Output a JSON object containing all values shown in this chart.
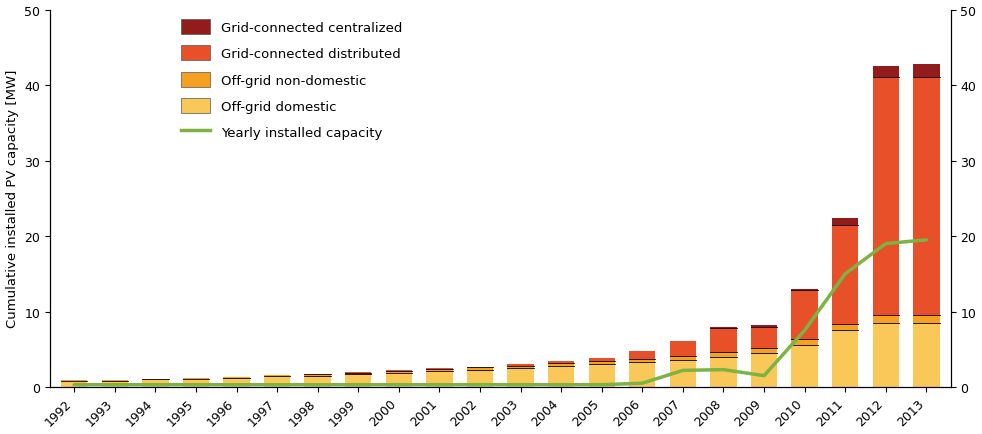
{
  "years": [
    1992,
    1993,
    1994,
    1995,
    1996,
    1997,
    1998,
    1999,
    2000,
    2001,
    2002,
    2003,
    2004,
    2005,
    2006,
    2007,
    2008,
    2009,
    2010,
    2011,
    2012,
    2013
  ],
  "off_grid_domestic": [
    0.8,
    0.8,
    1.0,
    1.0,
    1.2,
    1.4,
    1.5,
    1.7,
    1.9,
    2.1,
    2.3,
    2.5,
    2.8,
    3.0,
    3.3,
    3.6,
    4.0,
    4.5,
    5.5,
    7.5,
    8.5,
    8.5
  ],
  "off_grid_nondomestic": [
    0.1,
    0.1,
    0.1,
    0.15,
    0.15,
    0.2,
    0.2,
    0.2,
    0.25,
    0.25,
    0.3,
    0.3,
    0.35,
    0.4,
    0.45,
    0.5,
    0.6,
    0.7,
    0.8,
    0.9,
    1.0,
    1.0
  ],
  "grid_connected_dist": [
    0.0,
    0.0,
    0.0,
    0.0,
    0.0,
    0.0,
    0.05,
    0.05,
    0.1,
    0.1,
    0.1,
    0.2,
    0.3,
    0.4,
    1.0,
    2.0,
    3.2,
    2.8,
    6.5,
    13.0,
    31.5,
    31.5
  ],
  "grid_connected_cent": [
    0.0,
    0.0,
    0.0,
    0.0,
    0.0,
    0.0,
    0.0,
    0.0,
    0.0,
    0.0,
    0.0,
    0.0,
    0.0,
    0.0,
    0.0,
    0.0,
    0.1,
    0.15,
    0.2,
    1.0,
    1.5,
    1.8
  ],
  "yearly_capacity": [
    0.3,
    0.3,
    0.3,
    0.3,
    0.3,
    0.3,
    0.3,
    0.3,
    0.3,
    0.3,
    0.3,
    0.3,
    0.3,
    0.3,
    0.5,
    2.2,
    2.3,
    1.5,
    7.5,
    15.0,
    19.0,
    19.5
  ],
  "color_off_grid_domestic": "#FAC858",
  "color_off_grid_nondomestic": "#F5A020",
  "color_grid_dist": "#E8502A",
  "color_grid_cent": "#921B1B",
  "color_yearly": "#7CB342",
  "ylabel_left": "Cumulative installed PV capacity [MW]",
  "ylim": [
    0,
    50
  ],
  "yticks": [
    0,
    10,
    20,
    30,
    40,
    50
  ],
  "legend_labels": [
    "Grid-connected centralized",
    "Grid-connected distributed",
    "Off-grid non-domestic",
    "Off-grid domestic",
    "Yearly installed capacity"
  ]
}
